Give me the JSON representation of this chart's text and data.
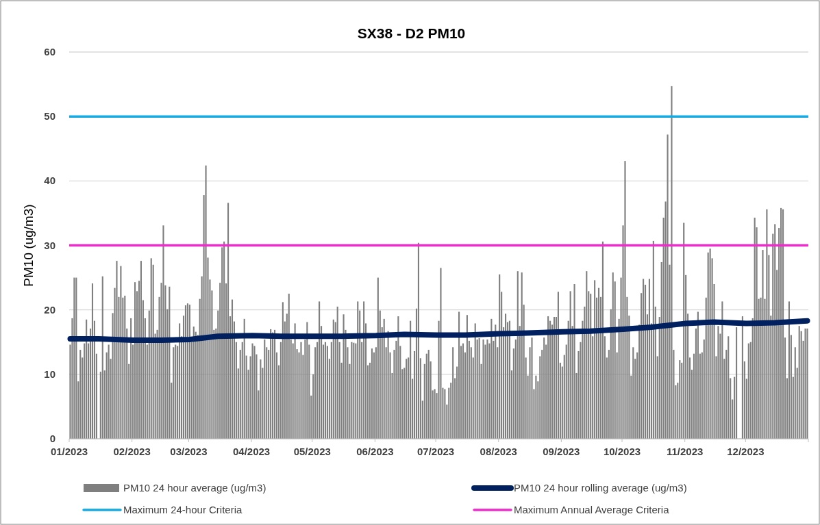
{
  "chart_data": {
    "type": "bar",
    "title": "SX38 - D2 PM10",
    "ylabel": "PM10 (ug/m3)",
    "x": [
      "2023-01-01",
      "2023-01-02",
      "2023-01-03",
      "2023-01-04",
      "2023-01-05",
      "2023-01-06",
      "2023-01-07",
      "2023-01-08",
      "2023-01-09",
      "2023-01-10",
      "2023-01-11",
      "2023-01-12",
      "2023-01-13",
      "2023-01-14",
      "2023-01-15",
      "2023-01-16",
      "2023-01-17",
      "2023-01-18",
      "2023-01-19",
      "2023-01-20",
      "2023-01-21",
      "2023-01-22",
      "2023-01-23",
      "2023-01-24",
      "2023-01-25",
      "2023-01-26",
      "2023-01-27",
      "2023-01-28",
      "2023-01-29",
      "2023-01-30",
      "2023-01-31",
      "2023-02-01",
      "2023-02-02",
      "2023-02-03",
      "2023-02-04",
      "2023-02-05",
      "2023-02-06",
      "2023-02-07",
      "2023-02-08",
      "2023-02-09",
      "2023-02-10",
      "2023-02-11",
      "2023-02-12",
      "2023-02-13",
      "2023-02-14",
      "2023-02-15",
      "2023-02-16",
      "2023-02-17",
      "2023-02-18",
      "2023-02-19",
      "2023-02-20",
      "2023-02-21",
      "2023-02-22",
      "2023-02-23",
      "2023-02-24",
      "2023-02-25",
      "2023-02-26",
      "2023-02-27",
      "2023-02-28",
      "2023-03-01",
      "2023-03-02",
      "2023-03-03",
      "2023-03-04",
      "2023-03-05",
      "2023-03-06",
      "2023-03-07",
      "2023-03-08",
      "2023-03-09",
      "2023-03-10",
      "2023-03-11",
      "2023-03-12",
      "2023-03-13",
      "2023-03-14",
      "2023-03-15",
      "2023-03-16",
      "2023-03-17",
      "2023-03-18",
      "2023-03-19",
      "2023-03-20",
      "2023-03-21",
      "2023-03-22",
      "2023-03-23",
      "2023-03-24",
      "2023-03-25",
      "2023-03-26",
      "2023-03-27",
      "2023-03-28",
      "2023-03-29",
      "2023-03-30",
      "2023-03-31",
      "2023-04-01",
      "2023-04-02",
      "2023-04-03",
      "2023-04-04",
      "2023-04-05",
      "2023-04-06",
      "2023-04-07",
      "2023-04-08",
      "2023-04-09",
      "2023-04-10",
      "2023-04-11",
      "2023-04-12",
      "2023-04-13",
      "2023-04-14",
      "2023-04-15",
      "2023-04-16",
      "2023-04-17",
      "2023-04-18",
      "2023-04-19",
      "2023-04-20",
      "2023-04-21",
      "2023-04-22",
      "2023-04-23",
      "2023-04-24",
      "2023-04-25",
      "2023-04-26",
      "2023-04-27",
      "2023-04-28",
      "2023-04-29",
      "2023-04-30",
      "2023-05-01",
      "2023-05-02",
      "2023-05-03",
      "2023-05-04",
      "2023-05-05",
      "2023-05-06",
      "2023-05-07",
      "2023-05-08",
      "2023-05-09",
      "2023-05-10",
      "2023-05-11",
      "2023-05-12",
      "2023-05-13",
      "2023-05-14",
      "2023-05-15",
      "2023-05-16",
      "2023-05-17",
      "2023-05-18",
      "2023-05-19",
      "2023-05-20",
      "2023-05-21",
      "2023-05-22",
      "2023-05-23",
      "2023-05-24",
      "2023-05-25",
      "2023-05-26",
      "2023-05-27",
      "2023-05-28",
      "2023-05-29",
      "2023-05-30",
      "2023-05-31",
      "2023-06-01",
      "2023-06-02",
      "2023-06-03",
      "2023-06-04",
      "2023-06-05",
      "2023-06-06",
      "2023-06-07",
      "2023-06-08",
      "2023-06-09",
      "2023-06-10",
      "2023-06-11",
      "2023-06-12",
      "2023-06-13",
      "2023-06-14",
      "2023-06-15",
      "2023-06-16",
      "2023-06-17",
      "2023-06-18",
      "2023-06-19",
      "2023-06-20",
      "2023-06-21",
      "2023-06-22",
      "2023-06-23",
      "2023-06-24",
      "2023-06-25",
      "2023-06-26",
      "2023-06-27",
      "2023-06-28",
      "2023-06-29",
      "2023-06-30",
      "2023-07-01",
      "2023-07-02",
      "2023-07-03",
      "2023-07-04",
      "2023-07-05",
      "2023-07-06",
      "2023-07-07",
      "2023-07-08",
      "2023-07-09",
      "2023-07-10",
      "2023-07-11",
      "2023-07-12",
      "2023-07-13",
      "2023-07-14",
      "2023-07-15",
      "2023-07-16",
      "2023-07-17",
      "2023-07-18",
      "2023-07-19",
      "2023-07-20",
      "2023-07-21",
      "2023-07-22",
      "2023-07-23",
      "2023-07-24",
      "2023-07-25",
      "2023-07-26",
      "2023-07-27",
      "2023-07-28",
      "2023-07-29",
      "2023-07-30",
      "2023-07-31",
      "2023-08-01",
      "2023-08-02",
      "2023-08-03",
      "2023-08-04",
      "2023-08-05",
      "2023-08-06",
      "2023-08-07",
      "2023-08-08",
      "2023-08-09",
      "2023-08-10",
      "2023-08-11",
      "2023-08-12",
      "2023-08-13",
      "2023-08-14",
      "2023-08-15",
      "2023-08-16",
      "2023-08-17",
      "2023-08-18",
      "2023-08-19",
      "2023-08-20",
      "2023-08-21",
      "2023-08-22",
      "2023-08-23",
      "2023-08-24",
      "2023-08-25",
      "2023-08-26",
      "2023-08-27",
      "2023-08-28",
      "2023-08-29",
      "2023-08-30",
      "2023-08-31",
      "2023-09-01",
      "2023-09-02",
      "2023-09-03",
      "2023-09-04",
      "2023-09-05",
      "2023-09-06",
      "2023-09-07",
      "2023-09-08",
      "2023-09-09",
      "2023-09-10",
      "2023-09-11",
      "2023-09-12",
      "2023-09-13",
      "2023-09-14",
      "2023-09-15",
      "2023-09-16",
      "2023-09-17",
      "2023-09-18",
      "2023-09-19",
      "2023-09-20",
      "2023-09-21",
      "2023-09-22",
      "2023-09-23",
      "2023-09-24",
      "2023-09-25",
      "2023-09-26",
      "2023-09-27",
      "2023-09-28",
      "2023-09-29",
      "2023-09-30",
      "2023-10-01",
      "2023-10-02",
      "2023-10-03",
      "2023-10-04",
      "2023-10-05",
      "2023-10-06",
      "2023-10-07",
      "2023-10-08",
      "2023-10-09",
      "2023-10-10",
      "2023-10-11",
      "2023-10-12",
      "2023-10-13",
      "2023-10-14",
      "2023-10-15",
      "2023-10-16",
      "2023-10-17",
      "2023-10-18",
      "2023-10-19",
      "2023-10-20",
      "2023-10-21",
      "2023-10-22",
      "2023-10-23",
      "2023-10-24",
      "2023-10-25",
      "2023-10-26",
      "2023-10-27",
      "2023-10-28",
      "2023-10-29",
      "2023-10-30",
      "2023-10-31",
      "2023-11-01",
      "2023-11-02",
      "2023-11-03",
      "2023-11-04",
      "2023-11-05",
      "2023-11-06",
      "2023-11-07",
      "2023-11-08",
      "2023-11-09",
      "2023-11-10",
      "2023-11-11",
      "2023-11-12",
      "2023-11-13",
      "2023-11-14",
      "2023-11-15",
      "2023-11-16",
      "2023-11-17",
      "2023-11-18",
      "2023-11-19",
      "2023-11-20",
      "2023-11-21",
      "2023-11-22",
      "2023-11-23",
      "2023-11-24",
      "2023-11-25",
      "2023-11-26",
      "2023-11-27",
      "2023-11-28",
      "2023-11-29",
      "2023-11-30",
      "2023-12-01",
      "2023-12-02",
      "2023-12-03",
      "2023-12-04",
      "2023-12-05",
      "2023-12-06",
      "2023-12-07",
      "2023-12-08",
      "2023-12-09",
      "2023-12-10",
      "2023-12-11",
      "2023-12-12",
      "2023-12-13",
      "2023-12-14",
      "2023-12-15",
      "2023-12-16",
      "2023-12-17",
      "2023-12-18",
      "2023-12-19",
      "2023-12-20",
      "2023-12-21",
      "2023-12-22",
      "2023-12-23",
      "2023-12-24",
      "2023-12-25",
      "2023-12-26",
      "2023-12-27",
      "2023-12-28",
      "2023-12-29",
      "2023-12-30",
      "2023-12-31"
    ],
    "xlim": [
      "2023-01-01",
      "2024-01-01"
    ],
    "xticks": [
      {
        "value": "2023-01-01",
        "label": "01/2023"
      },
      {
        "value": "2023-02-01",
        "label": "02/2023"
      },
      {
        "value": "2023-03-01",
        "label": "03/2023"
      },
      {
        "value": "2023-04-01",
        "label": "04/2023"
      },
      {
        "value": "2023-05-01",
        "label": "05/2023"
      },
      {
        "value": "2023-06-01",
        "label": "06/2023"
      },
      {
        "value": "2023-07-01",
        "label": "07/2023"
      },
      {
        "value": "2023-08-01",
        "label": "08/2023"
      },
      {
        "value": "2023-09-01",
        "label": "09/2023"
      },
      {
        "value": "2023-10-01",
        "label": "10/2023"
      },
      {
        "value": "2023-11-01",
        "label": "11/2023"
      },
      {
        "value": "2023-12-01",
        "label": "12/2023"
      },
      {
        "value": "2024-01-01",
        "label": null
      }
    ],
    "ylim": [
      0,
      60
    ],
    "yticks": [
      0,
      10,
      20,
      30,
      40,
      50,
      60
    ],
    "grid": "y",
    "legend": "bottom",
    "series": [
      {
        "name": "PM10 24 hour average (ug/m3)",
        "color": "#7f7f7f",
        "values": [
          14.6,
          18.7,
          25,
          25,
          8.9,
          13.8,
          12.6,
          14.8,
          18.5,
          14.8,
          17.1,
          24.1,
          18.3,
          13.2,
          null,
          10.4,
          25.2,
          10.6,
          13.4,
          14.6,
          12.4,
          19.5,
          23.4,
          27.6,
          22,
          26.8,
          21.9,
          22.2,
          17.1,
          11.6,
          18.7,
          14.6,
          24.3,
          22.9,
          24.5,
          27.6,
          21.5,
          18.7,
          14.6,
          19.9,
          28,
          27,
          16.3,
          16.9,
          22,
          24.2,
          33.1,
          23.8,
          20.1,
          23.6,
          8.7,
          14.2,
          14.6,
          14.4,
          17.9,
          15.9,
          19.1,
          20.7,
          21,
          20.8,
          15,
          17.4,
          16.6,
          16.1,
          21.7,
          25.2,
          37.8,
          42.4,
          28.1,
          24.7,
          23,
          16.9,
          17.1,
          19.9,
          24.2,
          29.7,
          30.6,
          24.1,
          36.6,
          19,
          21.6,
          18.2,
          15,
          10.9,
          13.8,
          15,
          18.6,
          12.9,
          10.7,
          12.8,
          14.8,
          14.4,
          13.1,
          7.5,
          12.3,
          11,
          15.4,
          14.2,
          13.8,
          17,
          16.5,
          16.9,
          13.4,
          11.4,
          15,
          21.2,
          18.2,
          19.4,
          22.5,
          15.4,
          14.8,
          17.9,
          13.9,
          13.4,
          15,
          13,
          15.4,
          18.1,
          14.6,
          6.7,
          10,
          14.2,
          15,
          21.3,
          17.5,
          14.6,
          15,
          14.4,
          12.4,
          15,
          18.5,
          18.1,
          20.5,
          15,
          11.8,
          19.3,
          16.9,
          14.2,
          11.6,
          15,
          14.9,
          14.8,
          21.3,
          19.9,
          15,
          21.3,
          17.9,
          11.4,
          11.8,
          14,
          13.4,
          14.2,
          25,
          19.9,
          17.3,
          18.6,
          14.2,
          16.7,
          13.4,
          10.2,
          13.8,
          15.2,
          19,
          14.4,
          10.8,
          11,
          12.4,
          12.6,
          18.3,
          9.3,
          13.6,
          20.2,
          30.4,
          12.5,
          5.9,
          11.6,
          13.2,
          13.8,
          12,
          7.5,
          7.7,
          7.1,
          18.3,
          26.5,
          7.9,
          7.7,
          5.3,
          7.9,
          8.7,
          14.2,
          9.4,
          11.2,
          19.7,
          14.4,
          14.8,
          13.4,
          19.2,
          15.2,
          14.2,
          12.6,
          17.9,
          15.4,
          15.6,
          11.6,
          15.4,
          14.6,
          15.4,
          14.8,
          18.6,
          15.2,
          17.7,
          14.2,
          25.5,
          22.8,
          17.3,
          19.4,
          18.1,
          18.3,
          10.6,
          14,
          15.4,
          26,
          17.5,
          25.8,
          20.8,
          12.6,
          9.8,
          14.2,
          15.7,
          7.7,
          9.8,
          8.9,
          12.8,
          13.8,
          15.7,
          14.6,
          19,
          18.3,
          17.7,
          18.9,
          18.9,
          22.8,
          11.8,
          11.2,
          13,
          14.6,
          18.3,
          22.9,
          17.5,
          24,
          10.2,
          13.6,
          15,
          18.3,
          20.5,
          26,
          22.9,
          22.5,
          15.9,
          24.6,
          21.9,
          23.4,
          22,
          30.6,
          15.9,
          12.6,
          13.8,
          20.1,
          25.8,
          24.4,
          13.4,
          18.6,
          25,
          33.1,
          43.1,
          22,
          19.1,
          9.8,
          14.2,
          12.4,
          13.4,
          17.7,
          22.6,
          24.8,
          23.9,
          19.3,
          24.8,
          17.9,
          30.7,
          20.5,
          12.8,
          18.9,
          27.4,
          34.3,
          36.8,
          47.2,
          27,
          54.7,
          13.8,
          8.3,
          8.7,
          12.2,
          11.8,
          33.5,
          25.4,
          19.4,
          12.6,
          10.7,
          13.2,
          17.1,
          19.7,
          13.2,
          13.4,
          15.4,
          21.9,
          28.9,
          29.5,
          28,
          24,
          12.8,
          17.5,
          16.3,
          21.3,
          12.4,
          13.8,
          15.9,
          9.4,
          6.1,
          9.6,
          17.3,
          null,
          null,
          19,
          12,
          9.3,
          14.8,
          15,
          18.7,
          34.3,
          32.8,
          21.7,
          21.9,
          29.3,
          21.7,
          35.6,
          28.5,
          19.1,
          31.8,
          33.3,
          26.2,
          32.7,
          35.8,
          35.6,
          15.7,
          9.4,
          21.3,
          16.1,
          9.6,
          14.2,
          11,
          17.5,
          16.7,
          15.2,
          17.1,
          17.1
        ]
      },
      {
        "type": "line",
        "name": "PM10 24 hour rolling average (ug/m3)",
        "color": "#002060",
        "x": [
          "2023-01-01",
          "2023-01-15",
          "2023-02-01",
          "2023-02-15",
          "2023-03-01",
          "2023-03-15",
          "2023-04-01",
          "2023-04-15",
          "2023-05-01",
          "2023-05-15",
          "2023-06-01",
          "2023-06-15",
          "2023-07-01",
          "2023-07-15",
          "2023-08-01",
          "2023-08-15",
          "2023-09-01",
          "2023-09-15",
          "2023-10-01",
          "2023-10-15",
          "2023-11-01",
          "2023-11-15",
          "2023-12-01",
          "2023-12-15",
          "2023-12-31"
        ],
        "values": [
          15.5,
          15.5,
          15.3,
          15.3,
          15.4,
          15.9,
          16.0,
          15.9,
          15.9,
          15.9,
          16.0,
          16.2,
          16.1,
          16.1,
          16.3,
          16.4,
          16.6,
          16.7,
          17.0,
          17.3,
          17.9,
          18.1,
          17.9,
          18.0,
          18.3
        ]
      }
    ],
    "ref_lines": [
      {
        "axis": "y",
        "value": 50,
        "label": "Maximum 24-hour Criteria",
        "color": "#17a9e1"
      },
      {
        "axis": "y",
        "value": 30,
        "label": "Maximum Annual Average Criteria",
        "color": "#ee2ccb"
      }
    ]
  }
}
